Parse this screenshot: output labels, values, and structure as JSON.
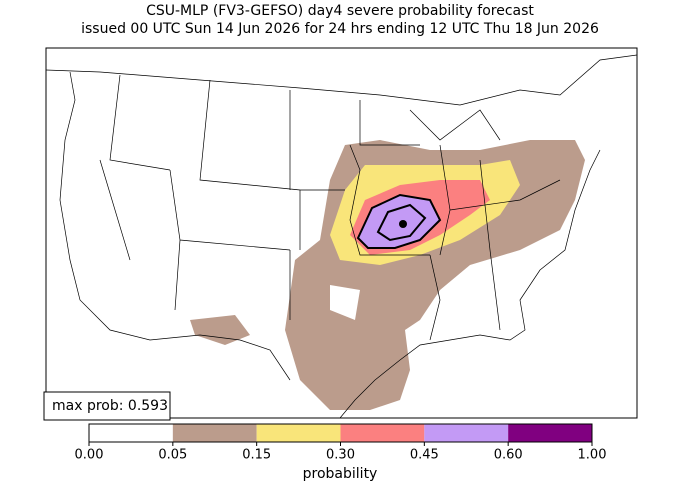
{
  "title": [
    "CSU-MLP (FV3-GEFSO) day4 severe probability forecast",
    "issued 00 UTC Sun 14 Jun 2026 for 24 hrs ending 12 UTC Thu 18 Jun 2026"
  ],
  "max_prob": "max prob: 0.593",
  "colorbar": {
    "boundaries": [
      {
        "value": 0,
        "label": "0.00"
      },
      {
        "value": 0.05,
        "label": "0.05"
      },
      {
        "value": 0.15,
        "label": "0.15"
      },
      {
        "value": 0.3,
        "label": "0.30"
      },
      {
        "value": 0.45,
        "label": "0.45"
      },
      {
        "value": 0.6,
        "label": "0.60"
      },
      {
        "value": 1,
        "label": "1.00"
      }
    ],
    "colors": [
      "#ffffff",
      "#bb9c8c",
      "#f9e57a",
      "#fb8080",
      "#c39af5",
      "#800080"
    ],
    "label": "probability"
  }
}
